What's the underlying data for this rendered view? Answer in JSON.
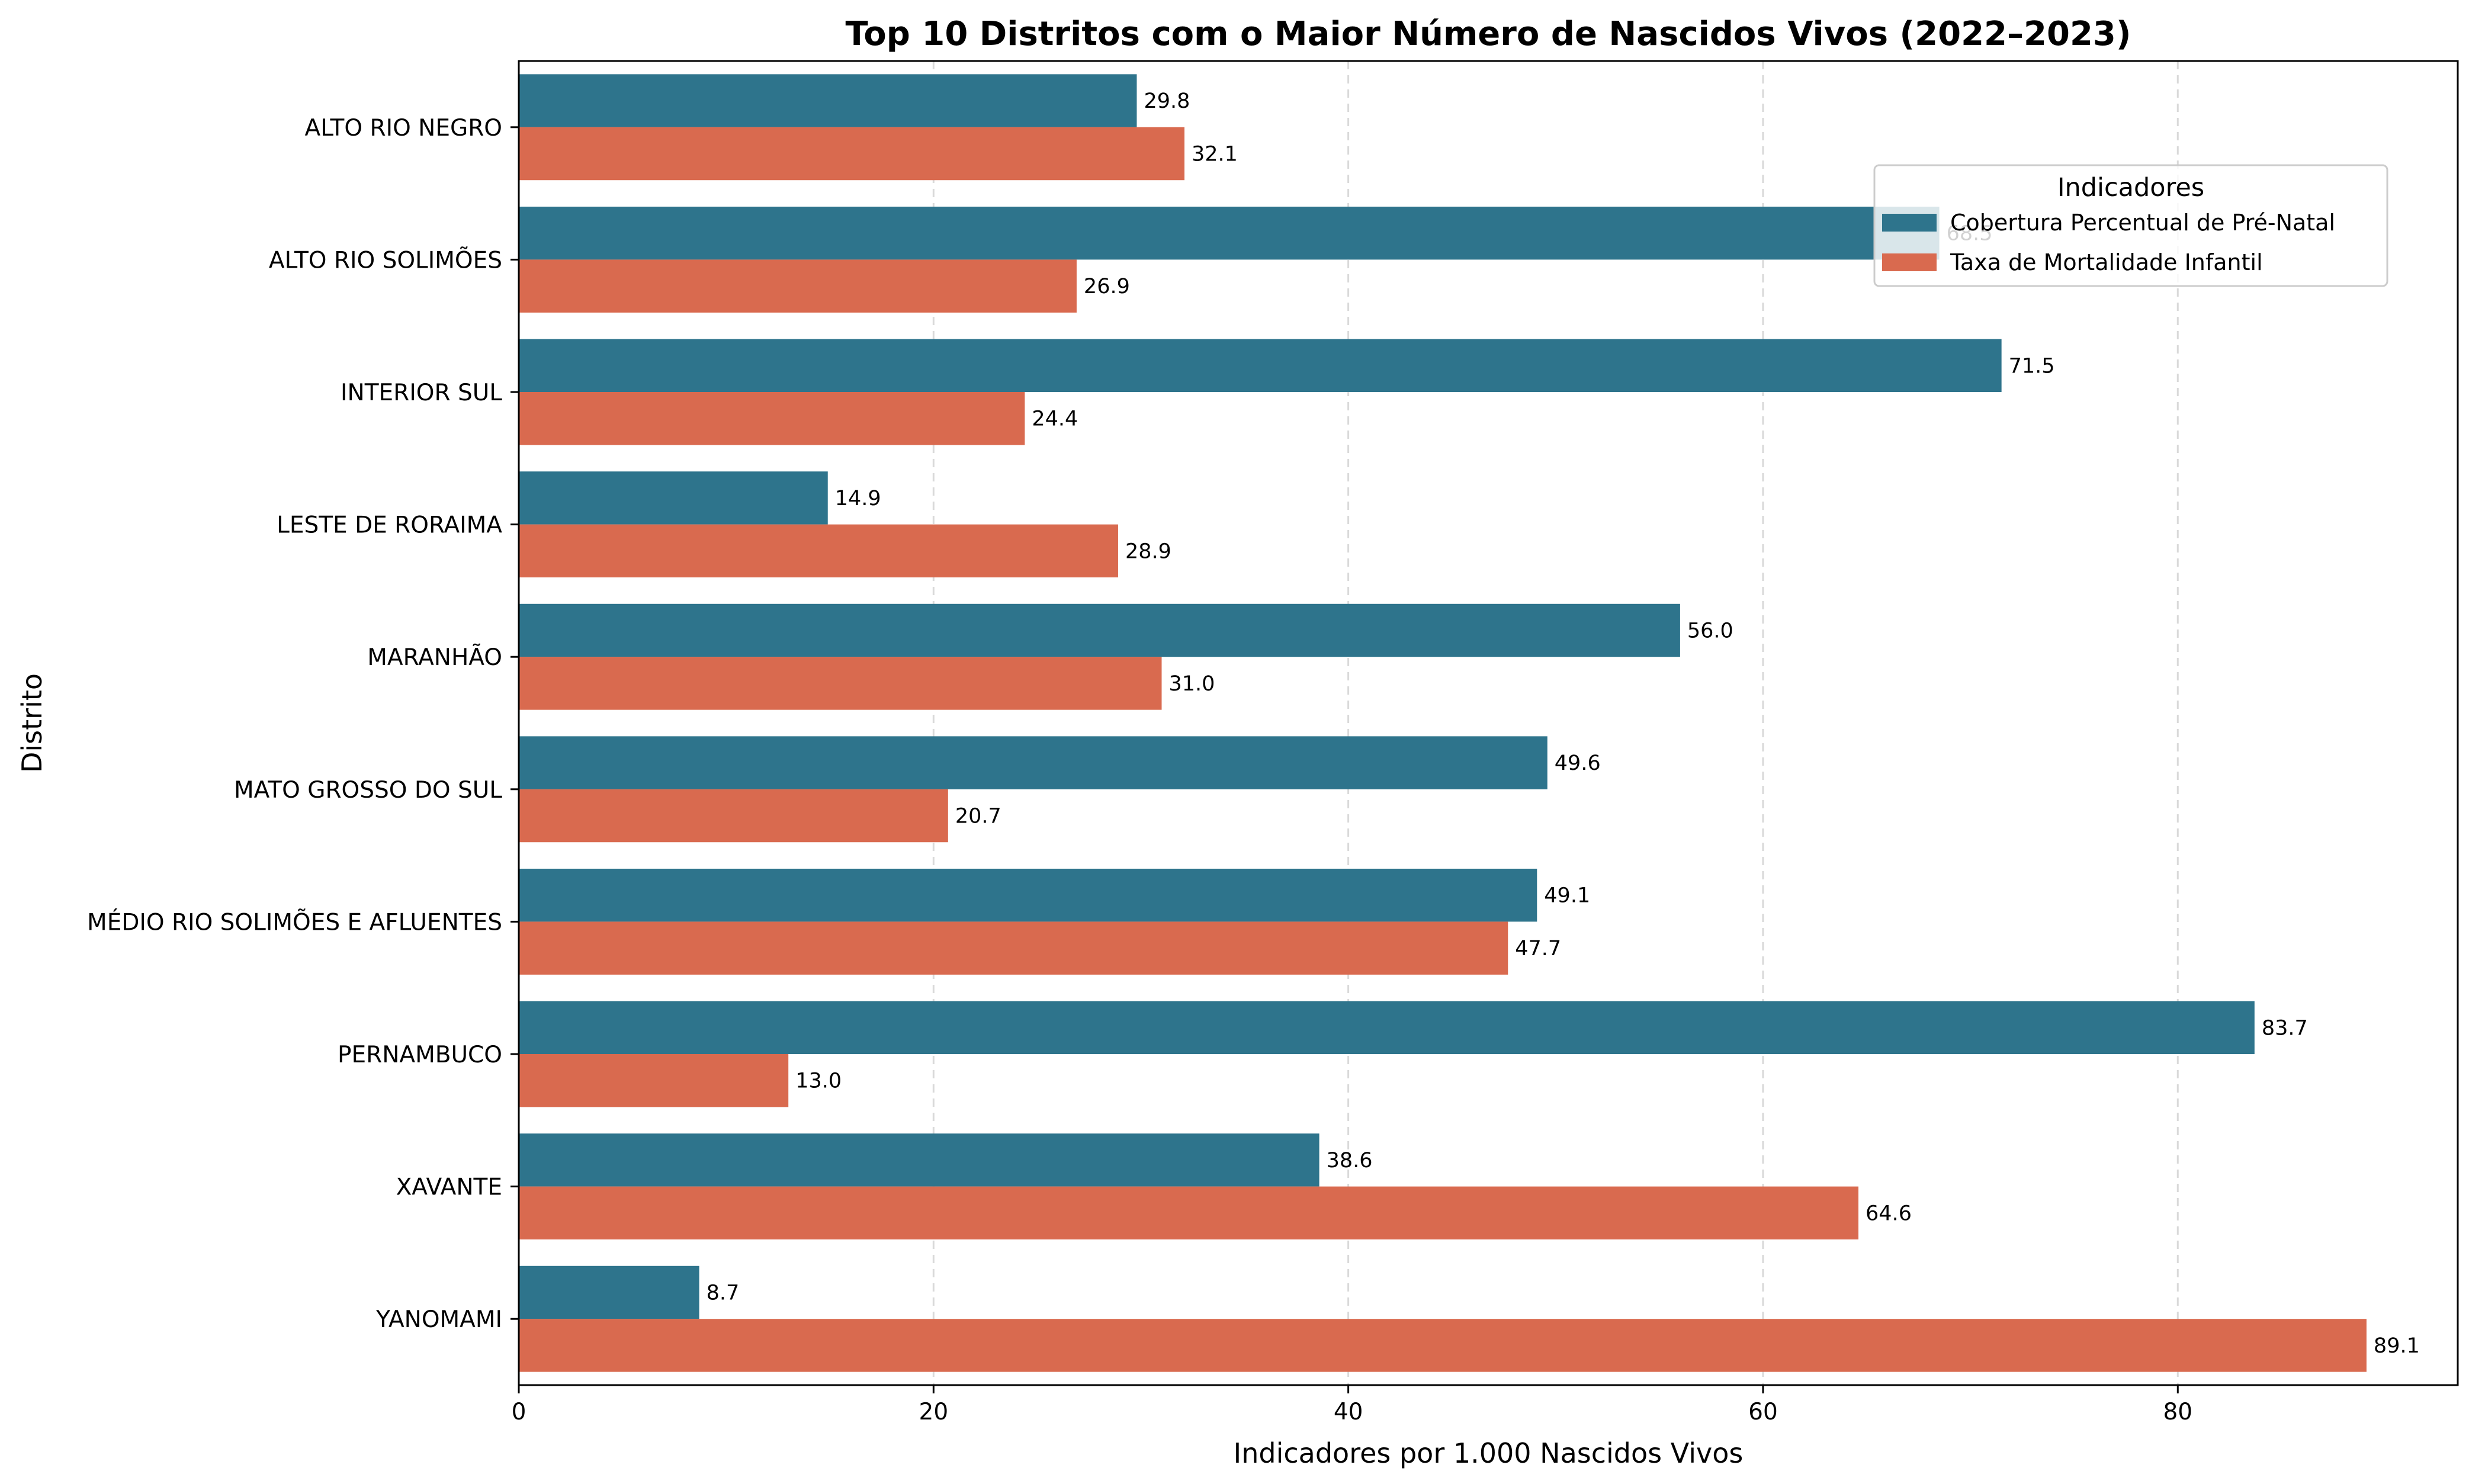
{
  "chart_data": {
    "type": "bar",
    "orientation": "horizontal",
    "title": "Top 10 Distritos com o Maior Número de Nascidos Vivos (2022–2023)",
    "xlabel": "Indicadores por 1.000 Nascidos Vivos",
    "ylabel": "Distrito",
    "xlim": [
      0,
      93.5
    ],
    "xticks": [
      0,
      20,
      40,
      60,
      80
    ],
    "grid": "x-dashed",
    "legend": {
      "title": "Indicadores",
      "placement": "top-right"
    },
    "categories": [
      "ALTO RIO NEGRO",
      "ALTO RIO SOLIMÕES",
      "INTERIOR SUL",
      "LESTE DE RORAIMA",
      "MARANHÃO",
      "MATO GROSSO DO SUL",
      "MÉDIO RIO SOLIMÕES E AFLUENTES",
      "PERNAMBUCO",
      "XAVANTE",
      "YANOMAMI"
    ],
    "series": [
      {
        "name": "Cobertura Percentual de Pré-Natal",
        "color": "#2e748c",
        "values": [
          29.8,
          68.5,
          71.5,
          14.9,
          56.0,
          49.6,
          49.1,
          83.7,
          38.6,
          8.7
        ],
        "labels": [
          "29.8",
          "68.5",
          "71.5",
          "14.9",
          "56.0",
          "49.6",
          "49.1",
          "83.7",
          "38.6",
          "8.7"
        ]
      },
      {
        "name": "Taxa de Mortalidade Infantil",
        "color": "#d96a4f",
        "values": [
          32.1,
          26.9,
          24.4,
          28.9,
          31.0,
          20.7,
          47.7,
          13.0,
          64.6,
          89.1
        ],
        "labels": [
          "32.1",
          "26.9",
          "24.4",
          "28.9",
          "31.0",
          "20.7",
          "47.7",
          "13.0",
          "64.6",
          "89.1"
        ]
      }
    ]
  }
}
